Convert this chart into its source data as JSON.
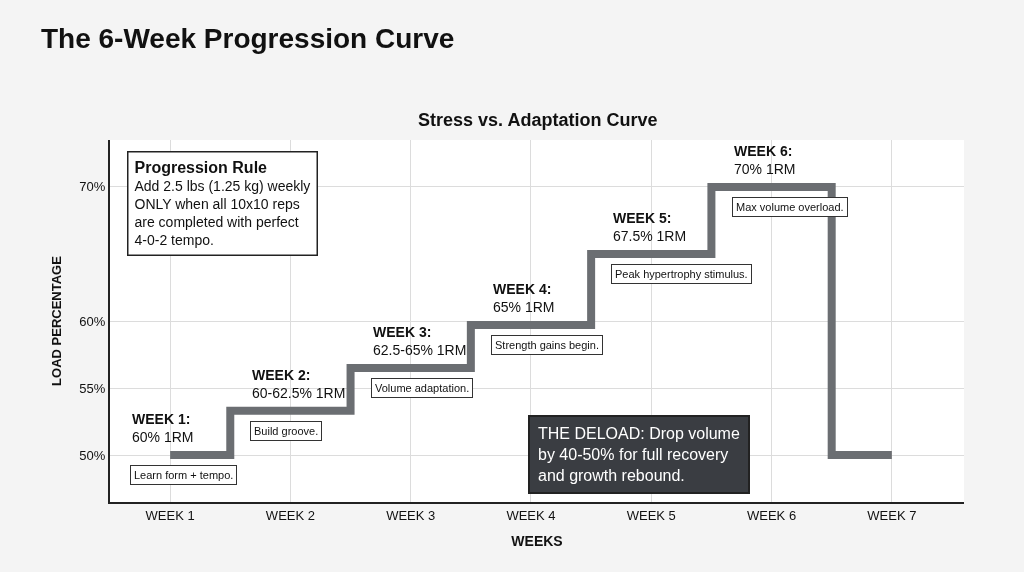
{
  "chart_data": {
    "type": "step",
    "title": "The 6-Week Progression Curve",
    "subtitle": "Stress vs. Adaptation Curve",
    "xlabel": "WEEKS",
    "ylabel": "LOAD PERCENTAGE",
    "categories": [
      "WEEK 1",
      "WEEK 2",
      "WEEK 3",
      "WEEK 4",
      "WEEK 5",
      "WEEK 6",
      "WEEK 7"
    ],
    "series": [
      {
        "color": "#6b6e72",
        "values": [
          50,
          53.3,
          56.5,
          59.7,
          65,
          70,
          50
        ]
      }
    ],
    "ylim": [
      46.5,
      73.5
    ],
    "yticks": [
      {
        "value": 50,
        "label": "50%"
      },
      {
        "value": 55,
        "label": "55%"
      },
      {
        "value": 60,
        "label": "60%"
      },
      {
        "value": 70,
        "label": "70%"
      }
    ],
    "grid": true,
    "marker": "none",
    "line_style": "solid",
    "annotations": [
      {
        "text": "WEEK 1:\n60% 1RM",
        "x": "WEEK 1",
        "y": 50
      },
      {
        "text": "Learn form + tempo.",
        "x": "WEEK 1",
        "y": 50
      },
      {
        "text": "WEEK 2:\n60-62.5% 1RM",
        "x": "WEEK 2",
        "y": 53.3
      },
      {
        "text": "Build groove.",
        "x": "WEEK 2",
        "y": 53.3
      },
      {
        "text": "WEEK 3:\n62.5-65% 1RM",
        "x": "WEEK 3",
        "y": 56.5
      },
      {
        "text": "Volume adaptation.",
        "x": "WEEK 3",
        "y": 56.5
      },
      {
        "text": "WEEK 4:\n65% 1RM",
        "x": "WEEK 4",
        "y": 59.7
      },
      {
        "text": "Strength gains begin.",
        "x": "WEEK 4",
        "y": 59.7
      },
      {
        "text": "WEEK 5:\n67.5% 1RM",
        "x": "WEEK 5",
        "y": 65
      },
      {
        "text": "Peak hypertrophy stimulus.",
        "x": "WEEK 5",
        "y": 65
      },
      {
        "text": "WEEK 6:\n70% 1RM",
        "x": "WEEK 6",
        "y": 70
      },
      {
        "text": "Max volume overload.",
        "x": "WEEK 6",
        "y": 70
      },
      "Progression Rule\nAdd 2.5 lbs (1.25 kg) weekly\nONLY when all 10x10 reps\nare completed with perfect\n4-0-2 tempo.",
      "THE DELOAD: Drop volume\nby 40-50% for full recovery\nand growth rebound."
    ]
  }
}
